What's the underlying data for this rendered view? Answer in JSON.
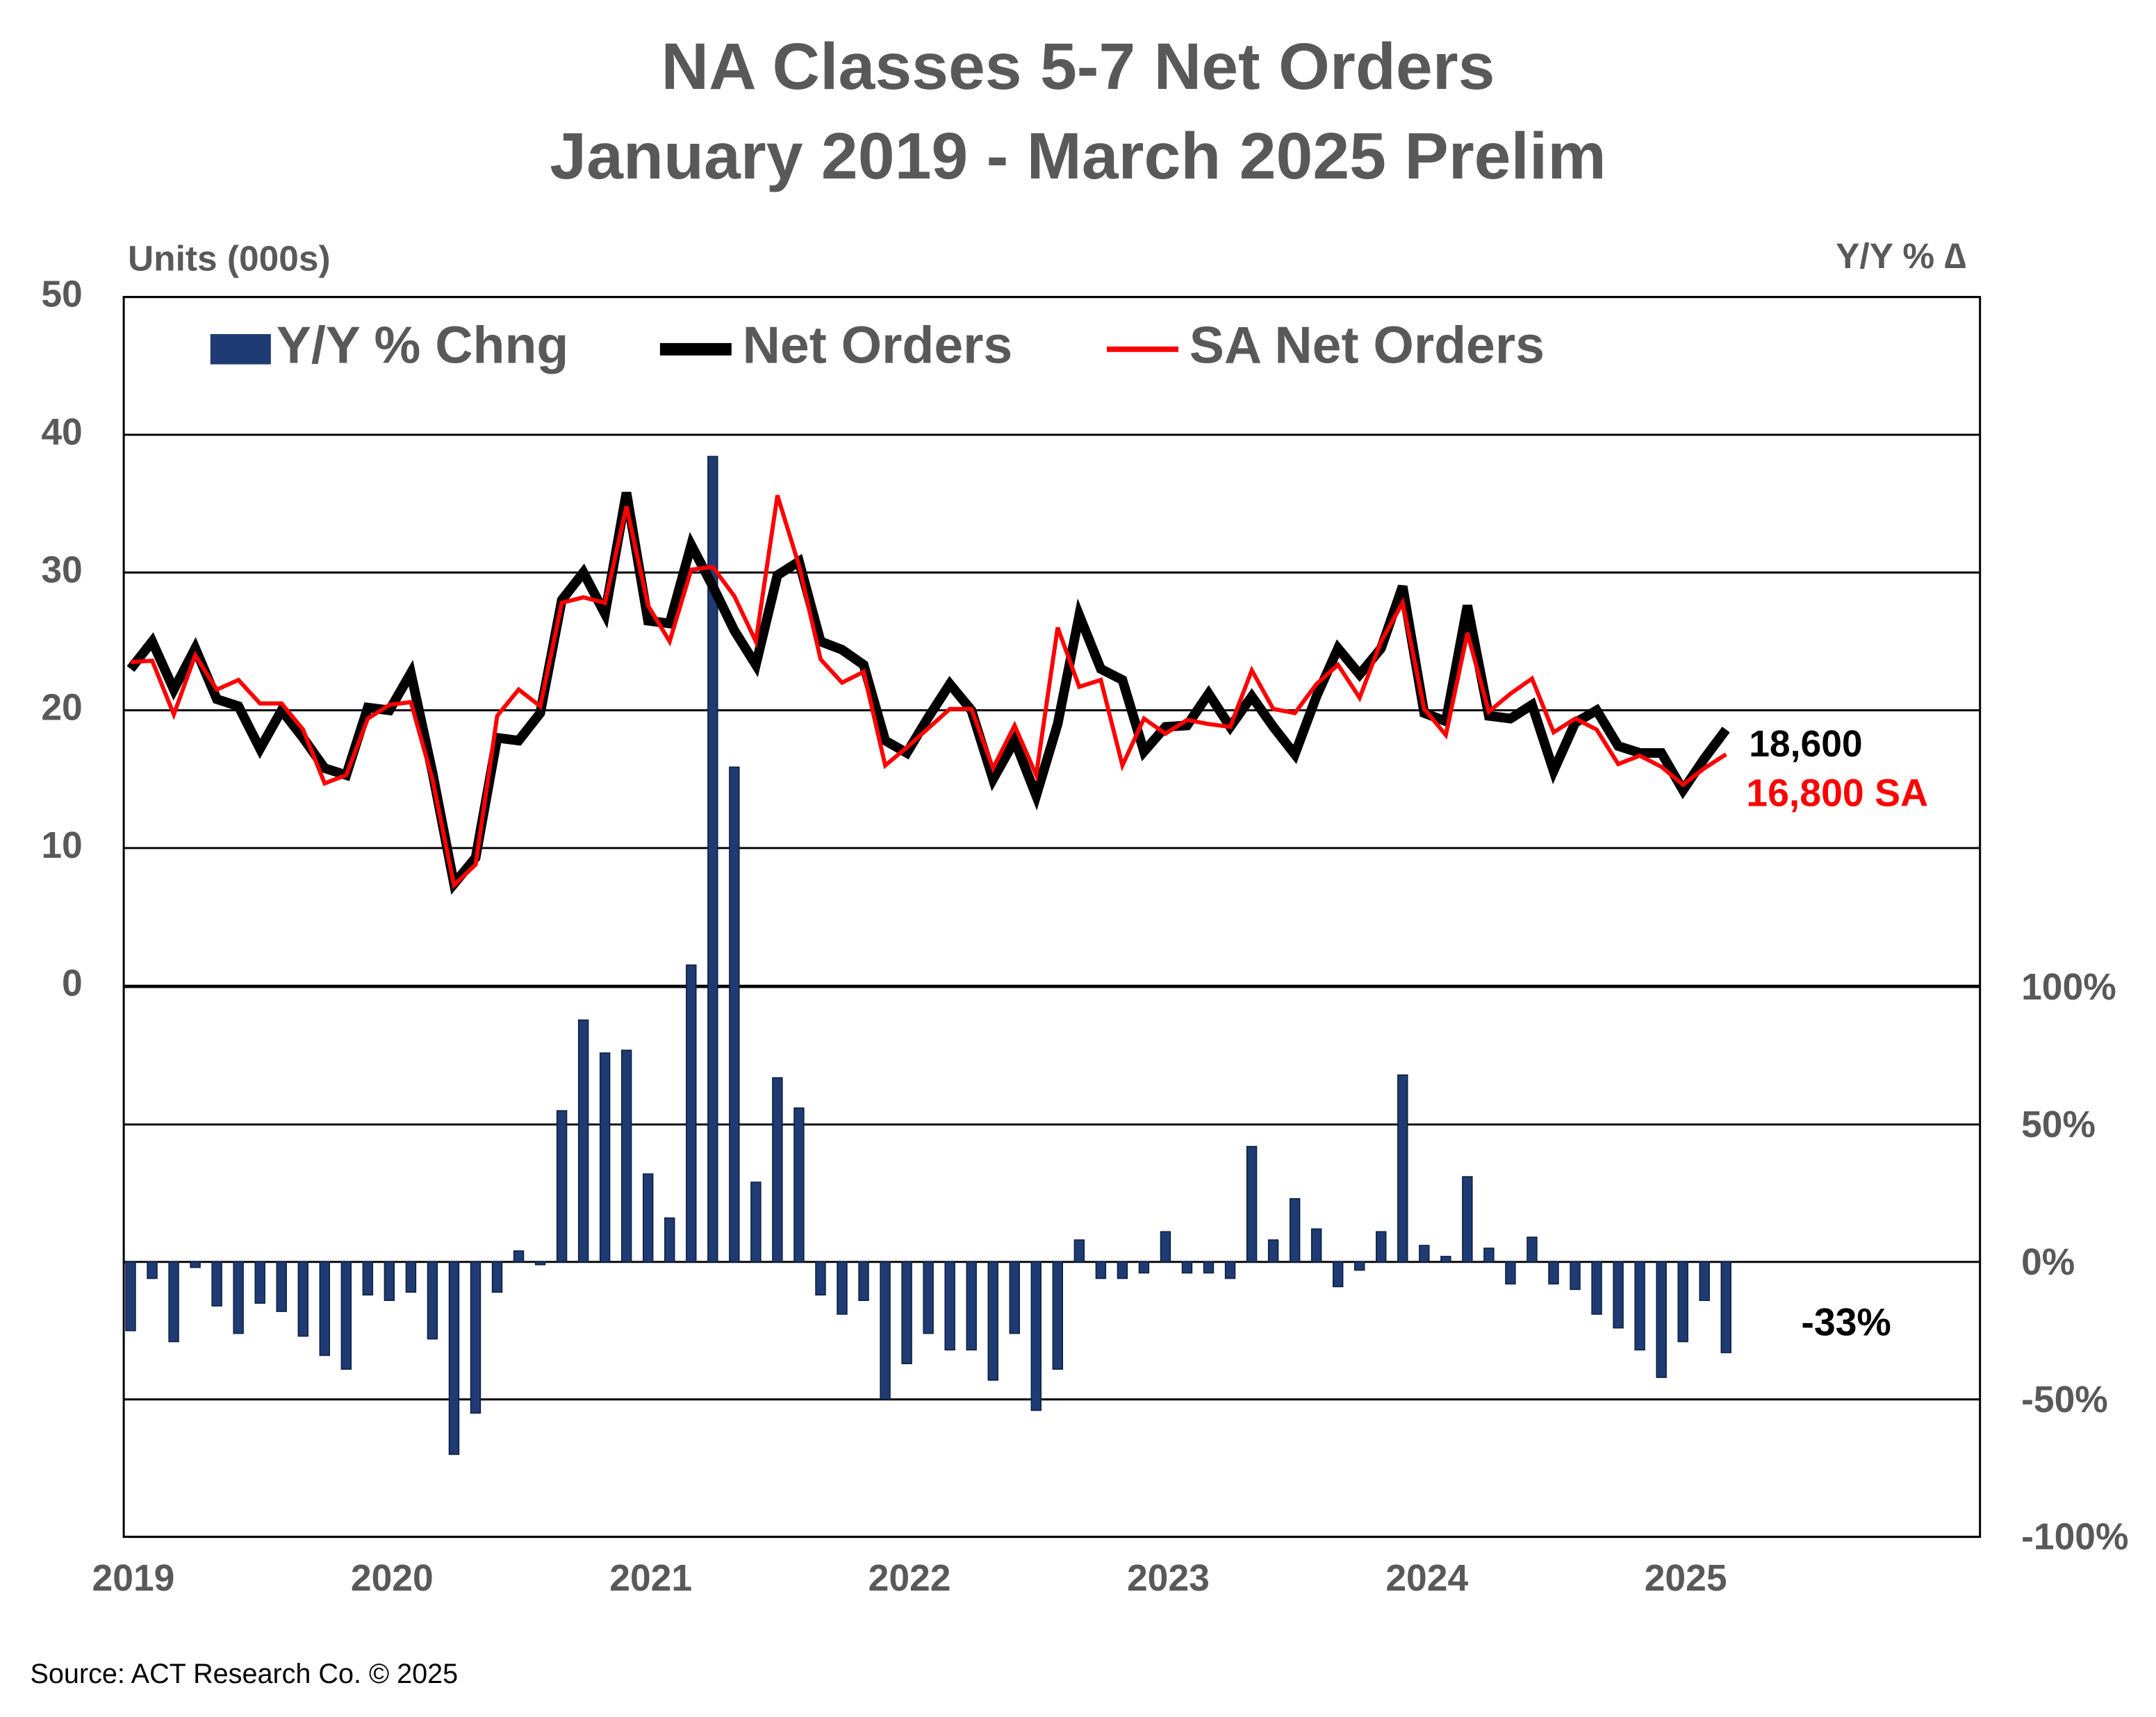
{
  "chart_data": {
    "type": "combo",
    "title": "NA Classes 5-7 Net Orders",
    "subtitle": "January 2019 - March 2025 Prelim",
    "y_axis_label": "Units (000s)",
    "y2_axis_label": "Y/Y % ∆",
    "source": "Source: ACT Research Co. © 2025",
    "categories": [
      "2019",
      null,
      null,
      null,
      null,
      null,
      null,
      null,
      null,
      null,
      null,
      null,
      "2020",
      null,
      null,
      null,
      null,
      null,
      null,
      null,
      null,
      null,
      null,
      null,
      "2021",
      null,
      null,
      null,
      null,
      null,
      null,
      null,
      null,
      null,
      null,
      null,
      "2022",
      null,
      null,
      null,
      null,
      null,
      null,
      null,
      null,
      null,
      null,
      null,
      "2023",
      null,
      null,
      null,
      null,
      null,
      null,
      null,
      null,
      null,
      null,
      null,
      "2024",
      null,
      null,
      null,
      null,
      null,
      null,
      null,
      null,
      null,
      null,
      null,
      "2025",
      null,
      null
    ],
    "series": [
      {
        "name": "Y/Y % Chng",
        "type": "bar",
        "axis": "y2",
        "color": "#1f3b73",
        "values": [
          -25,
          -6,
          -29,
          -2,
          -16,
          -26,
          -15,
          -18,
          -27,
          -34,
          -39,
          -12,
          -14,
          -11,
          -28,
          -70,
          -55,
          -11,
          4,
          -1,
          55,
          88,
          76,
          77,
          32,
          16,
          108,
          293,
          180,
          29,
          67,
          56,
          -12,
          -19,
          -14,
          -50,
          -37,
          -26,
          -32,
          -32,
          -43,
          -26,
          -54,
          -39,
          8,
          -6,
          -6,
          -4,
          11,
          -4,
          -4,
          -6,
          42,
          8,
          23,
          12,
          -9,
          -3,
          11,
          68,
          6,
          2,
          31,
          5,
          -8,
          9,
          -8,
          -10,
          -19,
          -24,
          -32,
          -42,
          -29,
          -14,
          -33
        ]
      },
      {
        "name": "Net Orders",
        "type": "line",
        "color": "#000000",
        "values": [
          23,
          25,
          21.5,
          24.5,
          20.8,
          20.3,
          17.2,
          20,
          18,
          15.8,
          15.3,
          20.2,
          20,
          22.7,
          15.5,
          7.4,
          9.3,
          18,
          17.8,
          19.8,
          28,
          30,
          27,
          35.8,
          26.5,
          26.3,
          32,
          29,
          25.8,
          23.3,
          29.8,
          30.8,
          25,
          24.4,
          23.3,
          17.8,
          16.9,
          19.5,
          21.9,
          20,
          15,
          17.8,
          13.8,
          19,
          26.9,
          23,
          22.2,
          17,
          18.8,
          18.9,
          21.2,
          18.8,
          21,
          18.8,
          16.8,
          21,
          24.5,
          22.6,
          24.5,
          29,
          19.8,
          19.2,
          27.6,
          19.6,
          19.4,
          20.4,
          15.6,
          19.1,
          20,
          17.4,
          16.9,
          16.9,
          14.2,
          16.5,
          18.6
        ]
      },
      {
        "name": "SA Net Orders",
        "type": "line",
        "color": "#ff0000",
        "values": [
          23.5,
          23.6,
          19.7,
          24,
          21.5,
          22.2,
          20.5,
          20.5,
          18.6,
          14.7,
          15.3,
          19.4,
          20.4,
          20.6,
          15,
          7.3,
          8.8,
          19.6,
          21.5,
          20.3,
          27.8,
          28.2,
          27.8,
          34.8,
          27.6,
          25,
          30.2,
          30.4,
          28.3,
          25,
          35.6,
          30.5,
          23.7,
          22,
          22.8,
          16,
          17.3,
          18.7,
          20.1,
          20.1,
          15.8,
          18.9,
          15.3,
          26,
          21.7,
          22.2,
          16,
          19.4,
          18.3,
          19.3,
          19,
          18.8,
          22.9,
          20.1,
          19.8,
          21.9,
          23.3,
          20.9,
          25,
          27.8,
          20.1,
          18.2,
          25.6,
          19.9,
          21.2,
          22.3,
          18.4,
          19.4,
          18.6,
          16.1,
          16.7,
          15.9,
          14.6,
          15.8,
          16.8
        ]
      }
    ],
    "annotations": [
      {
        "text": "18,600",
        "color": "#000000"
      },
      {
        "text": "16,800 SA",
        "color": "#ff0000"
      },
      {
        "text": "-33%",
        "color": "#000000"
      }
    ],
    "ylim": [
      -40,
      50
    ],
    "yticks": [
      0,
      10,
      20,
      30,
      40,
      50
    ],
    "y2lim": [
      -100,
      351
    ],
    "y2ticks": [
      {
        "value": 100,
        "label": "100%"
      },
      {
        "value": 50,
        "label": "50%"
      },
      {
        "value": 0,
        "label": "0%"
      },
      {
        "value": -50,
        "label": "-50%"
      },
      {
        "value": -100,
        "label": "-100%"
      }
    ],
    "grid": true,
    "legend": "top"
  }
}
